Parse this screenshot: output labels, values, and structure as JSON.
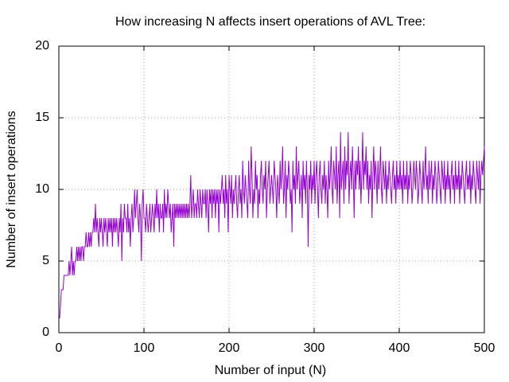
{
  "chart_data": {
    "type": "line",
    "title": "How increasing N affects insert operations of AVL Tree:",
    "x_label": "Number of input (N)",
    "y_label": "Number of insert operations",
    "xlim": [
      0,
      500
    ],
    "xticks": [
      0,
      100,
      200,
      300,
      400,
      500
    ],
    "ylim": [
      0,
      20
    ],
    "yticks": [
      0,
      5,
      10,
      15,
      20
    ],
    "grid": true,
    "x": [
      1,
      2,
      3,
      4,
      5,
      6,
      7,
      8,
      9,
      10,
      11,
      12,
      13,
      14,
      15,
      16,
      17,
      18,
      19,
      20,
      21,
      22,
      23,
      24,
      25,
      26,
      27,
      28,
      29,
      30,
      31,
      32,
      33,
      34,
      35,
      36,
      37,
      38,
      39,
      40,
      41,
      42,
      43,
      44,
      45,
      46,
      47,
      48,
      49,
      50,
      51,
      52,
      53,
      54,
      55,
      56,
      57,
      58,
      59,
      60,
      61,
      62,
      63,
      64,
      65,
      66,
      67,
      68,
      69,
      70,
      71,
      72,
      73,
      74,
      75,
      76,
      77,
      78,
      79,
      80,
      81,
      82,
      83,
      84,
      85,
      86,
      87,
      88,
      89,
      90,
      91,
      92,
      93,
      94,
      95,
      96,
      97,
      98,
      99,
      100,
      101,
      102,
      103,
      104,
      105,
      106,
      107,
      108,
      109,
      110,
      111,
      112,
      113,
      114,
      115,
      116,
      117,
      118,
      119,
      120,
      121,
      122,
      123,
      124,
      125,
      126,
      127,
      128,
      129,
      130,
      131,
      132,
      133,
      134,
      135,
      136,
      137,
      138,
      139,
      140,
      141,
      142,
      143,
      144,
      145,
      146,
      147,
      148,
      149,
      150,
      151,
      152,
      153,
      154,
      155,
      156,
      157,
      158,
      159,
      160,
      161,
      162,
      163,
      164,
      165,
      166,
      167,
      168,
      169,
      170,
      171,
      172,
      173,
      174,
      175,
      176,
      177,
      178,
      179,
      180,
      181,
      182,
      183,
      184,
      185,
      186,
      187,
      188,
      189,
      190,
      191,
      192,
      193,
      194,
      195,
      196,
      197,
      198,
      199,
      200,
      201,
      202,
      203,
      204,
      205,
      206,
      207,
      208,
      209,
      210,
      211,
      212,
      213,
      214,
      215,
      216,
      217,
      218,
      219,
      220,
      221,
      222,
      223,
      224,
      225,
      226,
      227,
      228,
      229,
      230,
      231,
      232,
      233,
      234,
      235,
      236,
      237,
      238,
      239,
      240,
      241,
      242,
      243,
      244,
      245,
      246,
      247,
      248,
      249,
      250,
      251,
      252,
      253,
      254,
      255,
      256,
      257,
      258,
      259,
      260,
      261,
      262,
      263,
      264,
      265,
      266,
      267,
      268,
      269,
      270,
      271,
      272,
      273,
      274,
      275,
      276,
      277,
      278,
      279,
      280,
      281,
      282,
      283,
      284,
      285,
      286,
      287,
      288,
      289,
      290,
      291,
      292,
      293,
      294,
      295,
      296,
      297,
      298,
      299,
      300,
      301,
      302,
      303,
      304,
      305,
      306,
      307,
      308,
      309,
      310,
      311,
      312,
      313,
      314,
      315,
      316,
      317,
      318,
      319,
      320,
      321,
      322,
      323,
      324,
      325,
      326,
      327,
      328,
      329,
      330,
      331,
      332,
      333,
      334,
      335,
      336,
      337,
      338,
      339,
      340,
      341,
      342,
      343,
      344,
      345,
      346,
      347,
      348,
      349,
      350,
      351,
      352,
      353,
      354,
      355,
      356,
      357,
      358,
      359,
      360,
      361,
      362,
      363,
      364,
      365,
      366,
      367,
      368,
      369,
      370,
      371,
      372,
      373,
      374,
      375,
      376,
      377,
      378,
      379,
      380,
      381,
      382,
      383,
      384,
      385,
      386,
      387,
      388,
      389,
      390,
      391,
      392,
      393,
      394,
      395,
      396,
      397,
      398,
      399,
      400,
      401,
      402,
      403,
      404,
      405,
      406,
      407,
      408,
      409,
      410,
      411,
      412,
      413,
      414,
      415,
      416,
      417,
      418,
      419,
      420,
      421,
      422,
      423,
      424,
      425,
      426,
      427,
      428,
      429,
      430,
      431,
      432,
      433,
      434,
      435,
      436,
      437,
      438,
      439,
      440,
      441,
      442,
      443,
      444,
      445,
      446,
      447,
      448,
      449,
      450,
      451,
      452,
      453,
      454,
      455,
      456,
      457,
      458,
      459,
      460,
      461,
      462,
      463,
      464,
      465,
      466,
      467,
      468,
      469,
      470,
      471,
      472,
      473,
      474,
      475,
      476,
      477,
      478,
      479,
      480,
      481,
      482,
      483,
      484,
      485,
      486,
      487,
      488,
      489,
      490,
      491,
      492,
      493,
      494,
      495,
      496,
      497,
      498,
      499,
      500
    ],
    "series": [
      {
        "color": "#9400d3",
        "values": [
          1,
          2,
          3,
          3,
          3,
          4,
          4,
          4,
          4,
          4,
          4,
          5,
          4,
          5,
          6,
          4,
          5,
          4,
          5,
          5,
          6,
          5,
          6,
          5,
          6,
          5,
          6,
          6,
          5,
          6,
          6,
          7,
          6,
          6,
          7,
          6,
          7,
          6,
          7,
          7,
          8,
          7,
          9,
          7,
          8,
          7,
          6,
          8,
          7,
          8,
          7,
          6,
          8,
          7,
          8,
          7,
          6,
          8,
          7,
          8,
          7,
          8,
          6,
          8,
          7,
          8,
          7,
          8,
          7,
          6,
          8,
          7,
          9,
          5,
          8,
          7,
          9,
          8,
          8,
          7,
          9,
          7,
          8,
          6,
          8,
          9,
          7,
          8,
          10,
          8,
          9,
          10,
          8,
          7,
          9,
          8,
          5,
          9,
          10,
          8,
          8,
          7,
          9,
          8,
          7,
          8,
          9,
          7,
          8,
          9,
          8,
          7,
          9,
          8,
          10,
          8,
          9,
          7,
          9,
          8,
          8,
          9,
          7,
          10,
          8,
          9,
          8,
          10,
          9,
          8,
          9,
          7,
          8,
          9,
          6,
          9,
          8,
          9,
          8,
          9,
          8,
          9,
          8,
          9,
          8,
          9,
          8,
          9,
          8,
          9,
          8,
          9,
          8,
          9,
          11,
          8,
          9,
          10,
          8,
          9,
          9,
          8,
          10,
          9,
          8,
          10,
          9,
          8,
          10,
          9,
          9,
          10,
          8,
          10,
          9,
          7,
          10,
          9,
          10,
          8,
          10,
          9,
          10,
          8,
          10,
          9,
          10,
          7,
          10,
          9,
          10,
          11,
          9,
          10,
          8,
          11,
          9,
          10,
          7,
          11,
          10,
          9,
          11,
          8,
          10,
          9,
          10,
          11,
          9,
          8,
          10,
          11,
          9,
          10,
          8,
          12,
          10,
          9,
          11,
          10,
          9,
          8,
          12,
          10,
          9,
          13,
          11,
          8,
          10,
          9,
          12,
          10,
          11,
          8,
          10,
          9,
          11,
          12,
          10,
          9,
          11,
          10,
          12,
          8,
          10,
          11,
          12,
          9,
          10,
          11,
          10,
          9,
          12,
          11,
          10,
          8,
          11,
          10,
          9,
          12,
          10,
          11,
          13,
          9,
          10,
          12,
          8,
          11,
          10,
          12,
          11,
          9,
          10,
          7,
          12,
          10,
          11,
          9,
          13,
          10,
          11,
          12,
          9,
          10,
          11,
          8,
          12,
          10,
          11,
          9,
          12,
          10,
          6,
          11,
          10,
          12,
          9,
          11,
          10,
          12,
          9,
          11,
          12,
          10,
          8,
          11,
          12,
          10,
          9,
          11,
          10,
          12,
          9,
          11,
          10,
          8,
          12,
          10,
          11,
          13,
          10,
          9,
          12,
          11,
          10,
          13,
          9,
          11,
          12,
          8,
          14,
          10,
          11,
          12,
          9,
          13,
          10,
          12,
          11,
          14,
          9,
          11,
          12,
          10,
          13,
          11,
          8,
          12,
          10,
          12,
          11,
          13,
          10,
          12,
          9,
          11,
          14,
          10,
          12,
          11,
          13,
          10,
          12,
          9,
          11,
          10,
          12,
          8,
          11,
          13,
          10,
          12,
          11,
          9,
          12,
          10,
          11,
          13,
          10,
          9,
          12,
          11,
          10,
          12,
          9,
          11,
          10,
          12,
          11,
          10,
          9,
          11,
          12,
          10,
          11,
          9,
          12,
          10,
          11,
          10,
          12,
          10,
          11,
          9,
          12,
          10,
          11,
          10,
          12,
          9,
          11,
          10,
          12,
          11,
          9,
          10,
          12,
          11,
          10,
          12,
          11,
          9,
          10,
          12,
          11,
          10,
          9,
          12,
          10,
          11,
          13,
          10,
          11,
          9,
          12,
          10,
          11,
          12,
          9,
          11,
          10,
          12,
          11,
          9,
          10,
          12,
          11,
          10,
          9,
          12,
          11,
          10,
          12,
          9,
          11,
          10,
          12,
          10,
          11,
          9,
          11,
          12,
          10,
          11,
          9,
          12,
          10,
          11,
          10,
          12,
          9,
          11,
          10,
          12,
          11,
          10,
          9,
          11,
          12,
          10,
          11,
          10,
          12,
          9,
          11,
          10,
          12,
          11,
          10,
          9,
          12,
          11,
          10,
          12,
          9,
          11,
          12,
          11,
          12,
          13
        ]
      }
    ]
  }
}
